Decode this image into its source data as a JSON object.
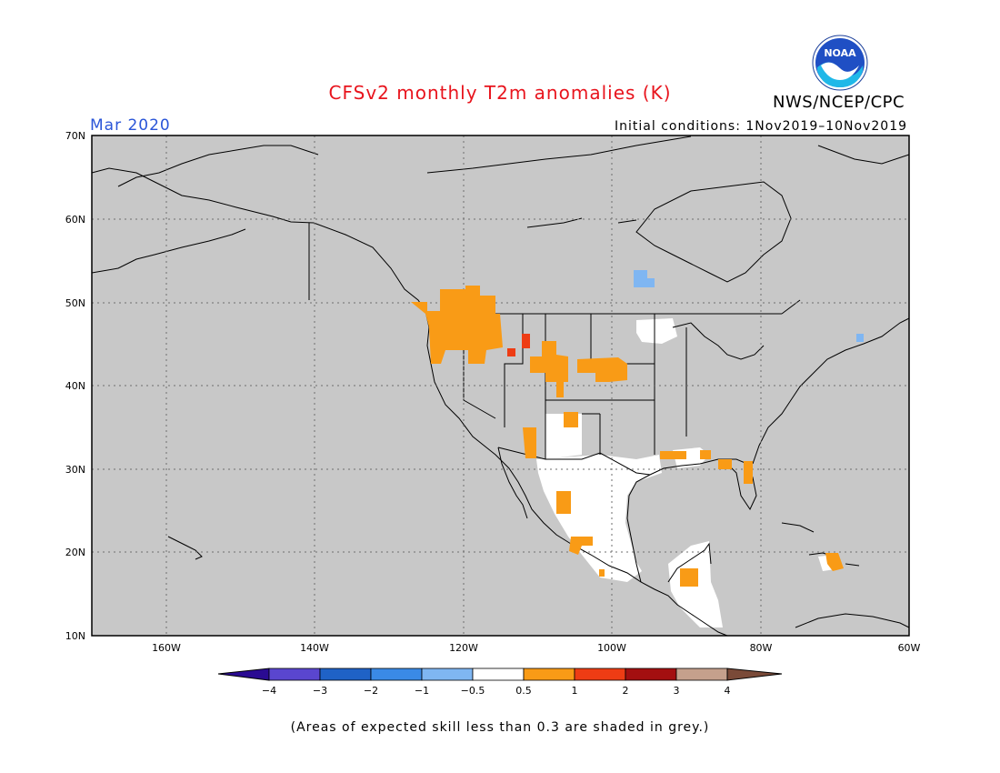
{
  "header": {
    "title": "CFSv2 monthly T2m anomalies (K)",
    "month": "Mar 2020",
    "initial_conditions": "Initial conditions: 1Nov2019–10Nov2019",
    "agency": "NWS/NCEP/CPC",
    "logo_text": "NOAA"
  },
  "colors": {
    "title": "#e8141d",
    "month": "#2a55d8",
    "map_background": "#c8c8c8",
    "skill_white": "#ffffff",
    "warm_0_5_1": "#f99b16",
    "warm_1_2": "#ee3c14",
    "cool_minus1_minus0_5": "#7fb6f2"
  },
  "map": {
    "lat_labels": [
      "70N",
      "60N",
      "50N",
      "40N",
      "30N",
      "20N",
      "10N"
    ],
    "lon_labels": [
      "160W",
      "140W",
      "120W",
      "100W",
      "80W",
      "60W"
    ],
    "extent": {
      "lon_min": -170,
      "lon_max": -60,
      "lat_min": 10,
      "lat_max": 70
    }
  },
  "colorbar": {
    "labels": [
      "−4",
      "−3",
      "−2",
      "−1",
      "−0.5",
      "0.5",
      "1",
      "2",
      "3",
      "4"
    ],
    "colors": [
      "#2a0b92",
      "#5a46cf",
      "#1f62c6",
      "#3a8ae6",
      "#7fb6f2",
      "#ffffff",
      "#f99b16",
      "#ee3c14",
      "#a30f10",
      "#c5a08c",
      "#7a4a38"
    ]
  },
  "footnote": "(Areas of expected skill less than 0.3 are shaded in grey.)"
}
